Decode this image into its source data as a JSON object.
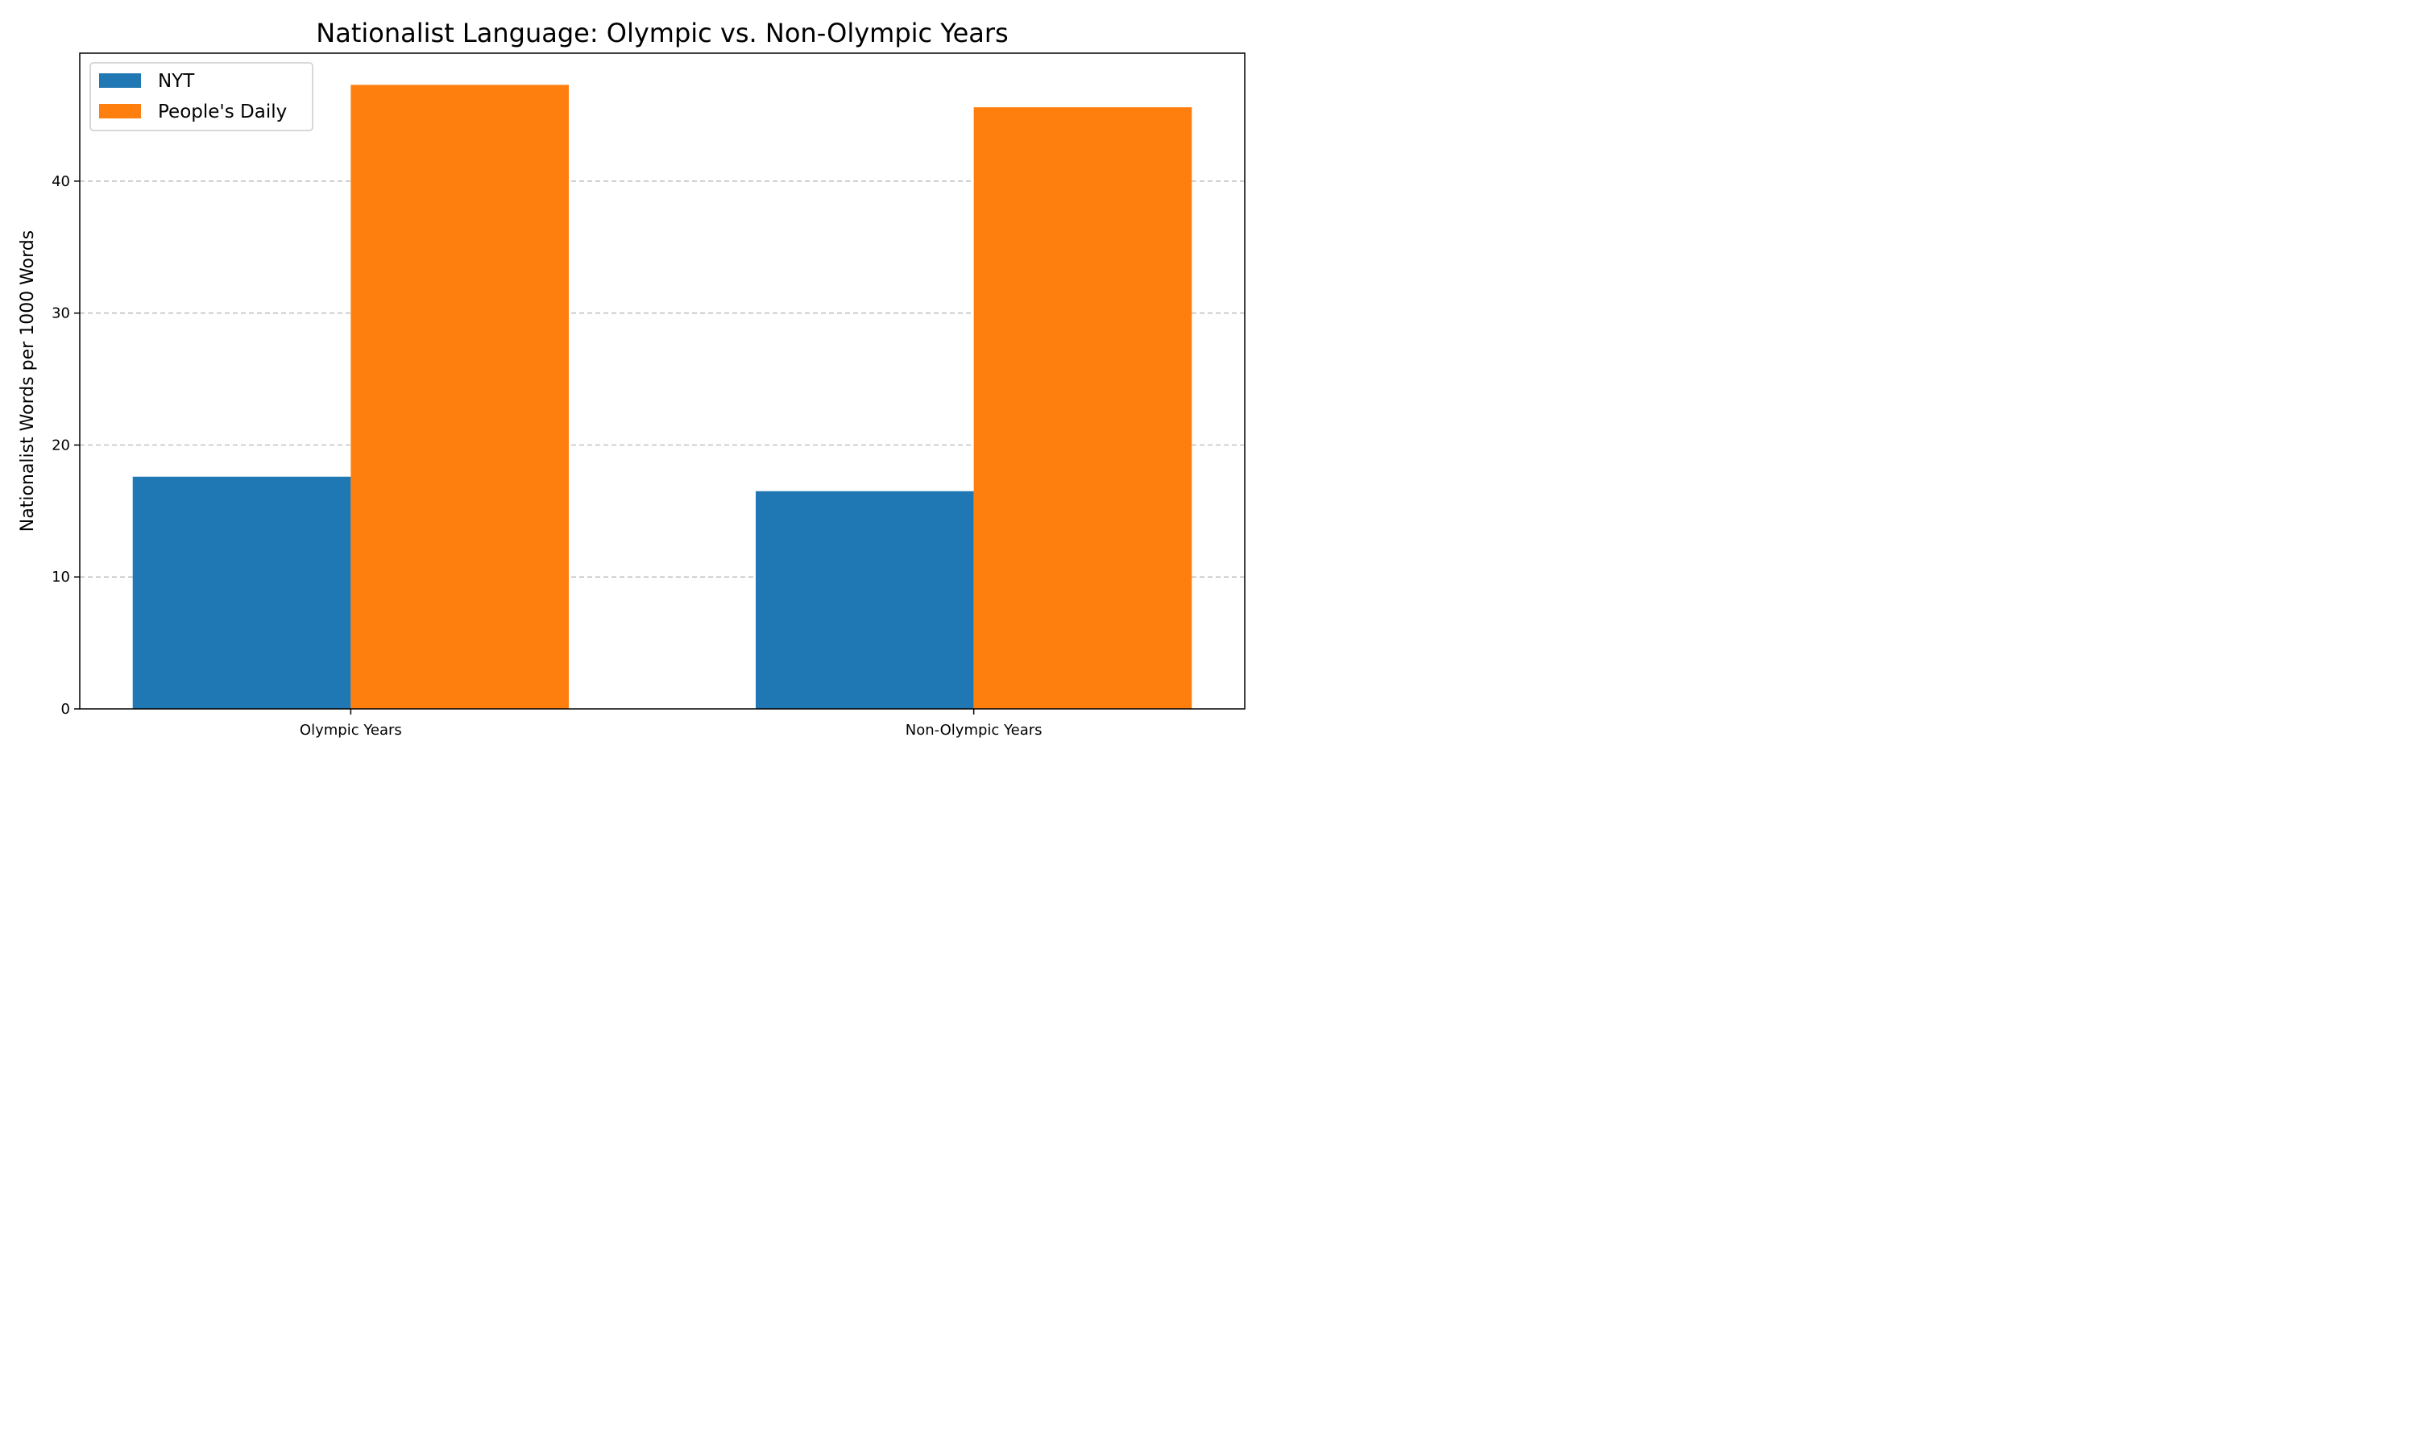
{
  "chart_data": {
    "type": "bar",
    "title": "Nationalist Language: Olympic vs. Non-Olympic Years",
    "xlabel": "",
    "ylabel": "Nationalist Words per 1000 Words",
    "categories": [
      "Olympic Years",
      "Non-Olympic Years"
    ],
    "series": [
      {
        "name": "NYT",
        "color": "#1f77b4",
        "values": [
          17.6,
          16.5
        ]
      },
      {
        "name": "People's Daily",
        "color": "#ff7f0e",
        "values": [
          47.3,
          45.6
        ]
      }
    ],
    "ylim": [
      0,
      49.7
    ],
    "yticks": [
      0,
      10,
      20,
      30,
      40
    ],
    "grid": "y-dashed",
    "legend_position": "top-left"
  }
}
